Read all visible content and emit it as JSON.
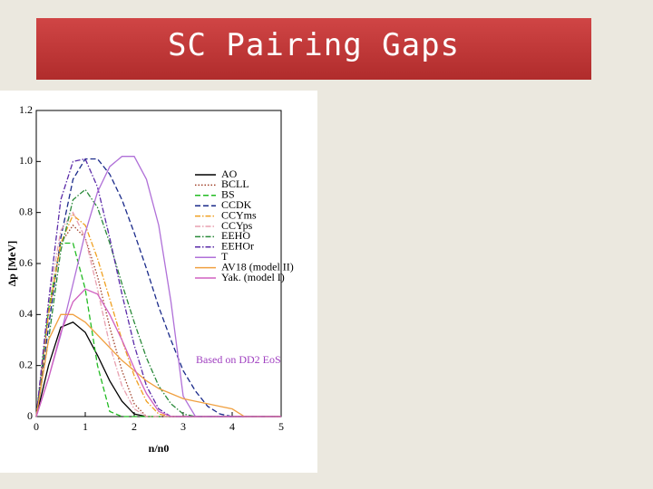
{
  "slide_title": "SC Pairing Gaps",
  "chart_data": {
    "type": "line",
    "x_label": "n/n0",
    "y_label": "Δp [MeV]",
    "annotation": "Based on DD2 EoS",
    "x": [
      0,
      0.25,
      0.5,
      0.75,
      1,
      1.25,
      1.5,
      1.75,
      2,
      2.25,
      2.5,
      2.75,
      3,
      3.25,
      3.5,
      3.75,
      4,
      4.25,
      4.5,
      4.75,
      5
    ],
    "xlim": [
      0,
      5
    ],
    "xticks": [
      0,
      1,
      2,
      3,
      4,
      5
    ],
    "ylim": [
      0,
      1.2
    ],
    "yticks": [
      0,
      0.2,
      0.4,
      0.6,
      0.8,
      {
        "value": 1,
        "label": "1.0"
      },
      1.2
    ],
    "series": [
      {
        "name": "AO",
        "color": "#000000",
        "dash": "solid",
        "values": [
          0,
          0.2,
          0.35,
          0.37,
          0.33,
          0.24,
          0.14,
          0.06,
          0.01,
          0,
          0,
          0,
          0,
          0,
          0,
          0,
          0,
          0,
          0,
          0,
          0
        ]
      },
      {
        "name": "BCLL",
        "color": "#a0402a",
        "dash": "dotted",
        "values": [
          0,
          0.4,
          0.68,
          0.75,
          0.7,
          0.55,
          0.35,
          0.18,
          0.05,
          0,
          0,
          0,
          0,
          0,
          0,
          0,
          0,
          0,
          0,
          0,
          0
        ]
      },
      {
        "name": "BS",
        "color": "#22bb22",
        "dash": "dashed",
        "values": [
          0,
          0.42,
          0.68,
          0.68,
          0.5,
          0.2,
          0.02,
          0,
          0,
          0,
          0,
          0,
          0,
          0,
          0,
          0,
          0,
          0,
          0,
          0,
          0
        ]
      },
      {
        "name": "CCDK",
        "color": "#1a2a8a",
        "dash": "dashed",
        "values": [
          0,
          0.35,
          0.7,
          0.93,
          1.01,
          1.01,
          0.95,
          0.85,
          0.72,
          0.58,
          0.43,
          0.3,
          0.18,
          0.1,
          0.04,
          0.01,
          0,
          0,
          0,
          0,
          0
        ]
      },
      {
        "name": "CCYms",
        "color": "#f0a020",
        "dash": "dashdot",
        "values": [
          0,
          0.4,
          0.68,
          0.79,
          0.75,
          0.62,
          0.46,
          0.3,
          0.16,
          0.06,
          0.01,
          0,
          0,
          0,
          0,
          0,
          0,
          0,
          0,
          0,
          0
        ]
      },
      {
        "name": "CCYps",
        "color": "#e8a0b0",
        "dash": "dashdot",
        "values": [
          0,
          0.45,
          0.73,
          0.8,
          0.7,
          0.5,
          0.28,
          0.12,
          0.03,
          0,
          0,
          0,
          0,
          0,
          0,
          0,
          0,
          0,
          0,
          0,
          0
        ]
      },
      {
        "name": "EEHO",
        "color": "#2a8a3a",
        "dash": "dashdot",
        "values": [
          0,
          0.3,
          0.65,
          0.85,
          0.89,
          0.82,
          0.68,
          0.52,
          0.37,
          0.23,
          0.12,
          0.05,
          0.01,
          0,
          0,
          0,
          0,
          0,
          0,
          0,
          0
        ]
      },
      {
        "name": "EEHOr",
        "color": "#5a2aa8",
        "dash": "dashdot",
        "values": [
          0,
          0.45,
          0.85,
          1.0,
          1.01,
          0.9,
          0.7,
          0.48,
          0.28,
          0.12,
          0.03,
          0,
          0,
          0,
          0,
          0,
          0,
          0,
          0,
          0,
          0
        ]
      },
      {
        "name": "T",
        "color": "#b070d8",
        "dash": "solid",
        "values": [
          0,
          0.15,
          0.32,
          0.52,
          0.72,
          0.88,
          0.98,
          1.02,
          1.02,
          0.93,
          0.75,
          0.45,
          0.08,
          0,
          0,
          0,
          0,
          0,
          0,
          0,
          0
        ]
      },
      {
        "name": "AV18 (model II)",
        "color": "#f0a040",
        "dash": "solid",
        "values": [
          0,
          0.3,
          0.4,
          0.4,
          0.37,
          0.32,
          0.27,
          0.22,
          0.18,
          0.14,
          0.11,
          0.09,
          0.07,
          0.06,
          0.05,
          0.04,
          0.03,
          0,
          0,
          0,
          0
        ]
      },
      {
        "name": "Yak. (model I)",
        "color": "#d060c0",
        "dash": "solid",
        "values": [
          0,
          0.15,
          0.33,
          0.45,
          0.5,
          0.48,
          0.4,
          0.3,
          0.19,
          0.09,
          0.02,
          0,
          0,
          0,
          0,
          0,
          0,
          0,
          0,
          0,
          0
        ]
      }
    ]
  }
}
